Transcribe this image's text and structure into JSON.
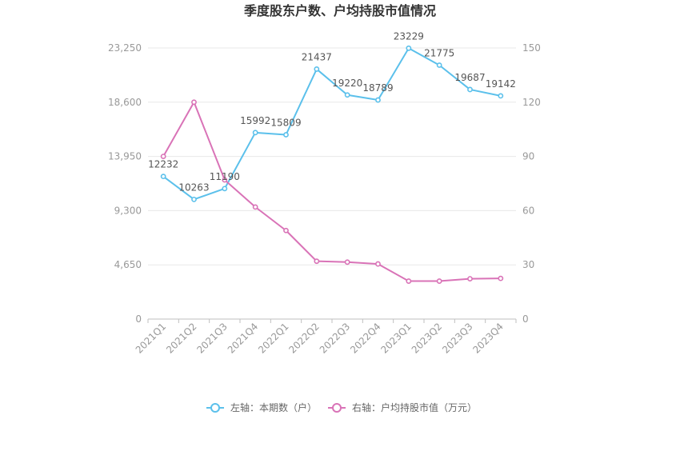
{
  "chart_data": {
    "type": "line",
    "title": "季度股东户数、户均持股市值情况",
    "categories": [
      "2021Q1",
      "2021Q2",
      "2021Q3",
      "2021Q4",
      "2022Q1",
      "2022Q2",
      "2022Q3",
      "2022Q4",
      "2023Q1",
      "2023Q2",
      "2023Q3",
      "2023Q4"
    ],
    "left_axis": {
      "ticks": [
        0,
        4650,
        9300,
        13950,
        18600,
        23250
      ],
      "tick_labels": [
        "0",
        "4,650",
        "9,300",
        "13,950",
        "18,600",
        "23,250"
      ],
      "ylim": [
        0,
        23250
      ]
    },
    "right_axis": {
      "ticks": [
        0,
        30,
        60,
        90,
        120,
        150
      ],
      "tick_labels": [
        "0",
        "30",
        "60",
        "90",
        "120",
        "150"
      ],
      "ylim": [
        0,
        150
      ]
    },
    "series": [
      {
        "name": "左轴：本期数（户）",
        "axis": "left",
        "color": "#5bc0eb",
        "values": [
          12232,
          10263,
          11190,
          15992,
          15809,
          21437,
          19220,
          18789,
          23229,
          21775,
          19687,
          19142
        ],
        "labels": [
          "12232",
          "10263",
          "11190",
          "15992",
          "15809",
          "21437",
          "19220",
          "18789",
          "23229",
          "21775",
          "19687",
          "19142"
        ]
      },
      {
        "name": "右轴：户均持股市值（万元）",
        "axis": "right",
        "color": "#d973b7",
        "values": [
          90,
          120,
          77,
          62,
          49,
          32,
          31.5,
          30.5,
          21,
          21,
          22.3,
          22.5
        ]
      }
    ],
    "grid": true,
    "legend": "bottom-center"
  }
}
